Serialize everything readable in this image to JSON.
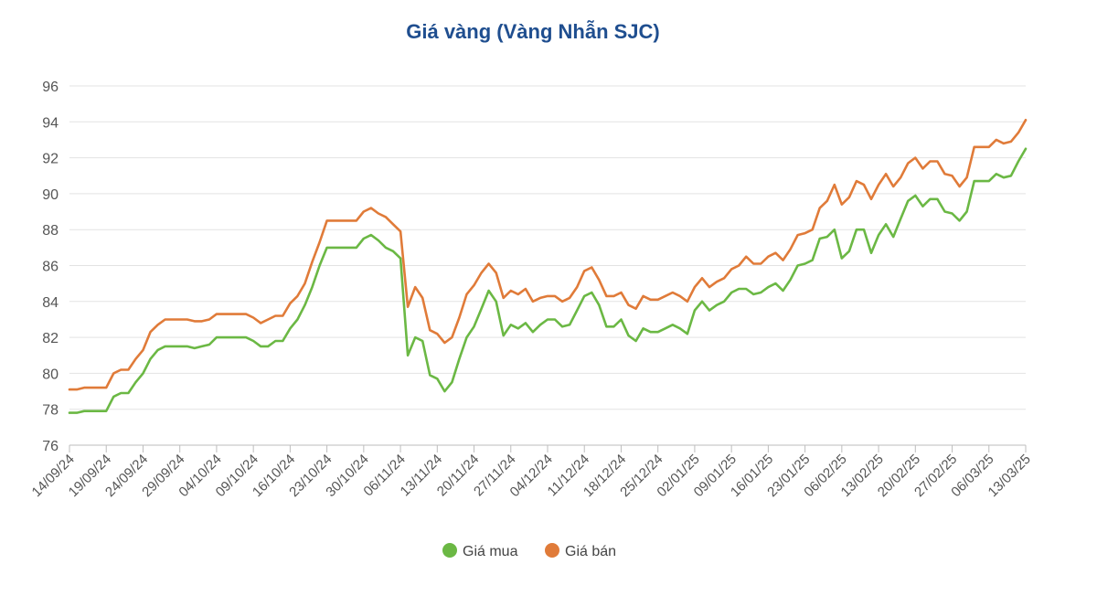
{
  "chart_data": {
    "type": "line",
    "title": "Giá vàng (Vàng Nhẫn SJC)",
    "xlabel": "",
    "ylabel": "",
    "ylim": [
      76,
      96
    ],
    "y_ticks": [
      76,
      78,
      80,
      82,
      84,
      86,
      88,
      90,
      92,
      94,
      96
    ],
    "x_tick_labels": [
      "14/09/24",
      "19/09/24",
      "24/09/24",
      "29/09/24",
      "04/10/24",
      "09/10/24",
      "16/10/24",
      "23/10/24",
      "30/10/24",
      "06/11/24",
      "13/11/24",
      "20/11/24",
      "27/11/24",
      "04/12/24",
      "11/12/24",
      "18/12/24",
      "25/12/24",
      "02/01/25",
      "09/01/25",
      "16/01/25",
      "23/01/25",
      "06/02/25",
      "13/02/25",
      "20/02/25",
      "27/02/25",
      "06/03/25",
      "13/03/25"
    ],
    "grid": "horizontal",
    "legend_position": "bottom-center",
    "colors": {
      "buy": "#6bb844",
      "sell": "#e07b39",
      "title": "#1f4e8f"
    },
    "series": [
      {
        "name": "Giá mua",
        "values": [
          77.8,
          77.8,
          77.9,
          77.9,
          77.9,
          77.9,
          78.7,
          78.9,
          78.9,
          79.5,
          80,
          80.8,
          81.3,
          81.5,
          81.5,
          81.5,
          81.5,
          81.4,
          81.5,
          81.6,
          82,
          82,
          82,
          82,
          82,
          81.8,
          81.5,
          81.5,
          81.8,
          81.8,
          82.5,
          83,
          83.8,
          84.8,
          86,
          87,
          87,
          87,
          87,
          87,
          87.5,
          87.7,
          87.4,
          87,
          86.8,
          86.4,
          81,
          82,
          81.8,
          79.9,
          79.7,
          79,
          79.5,
          80.8,
          82,
          82.6,
          83.6,
          84.6,
          84,
          82.1,
          82.7,
          82.5,
          82.8,
          82.3,
          82.7,
          83,
          83,
          82.6,
          82.7,
          83.5,
          84.3,
          84.5,
          83.8,
          82.6,
          82.6,
          83,
          82.1,
          81.8,
          82.5,
          82.3,
          82.3,
          82.5,
          82.7,
          82.5,
          82.2,
          83.5,
          84,
          83.5,
          83.8,
          84,
          84.5,
          84.7,
          84.7,
          84.4,
          84.5,
          84.8,
          85,
          84.6,
          85.2,
          86,
          86.1,
          86.3,
          87.5,
          87.6,
          88,
          86.4,
          86.8,
          88,
          88,
          86.7,
          87.7,
          88.3,
          87.6,
          88.6,
          89.6,
          89.9,
          89.3,
          89.7,
          89.7,
          89,
          88.9,
          88.5,
          89,
          90.7,
          90.7,
          90.7,
          91.1,
          90.9,
          91,
          91.8,
          92.5
        ]
      },
      {
        "name": "Giá bán",
        "values": [
          79.1,
          79.1,
          79.2,
          79.2,
          79.2,
          79.2,
          80,
          80.2,
          80.2,
          80.8,
          81.3,
          82.3,
          82.7,
          83,
          83,
          83,
          83,
          82.9,
          82.9,
          83,
          83.3,
          83.3,
          83.3,
          83.3,
          83.3,
          83.1,
          82.8,
          83,
          83.2,
          83.2,
          83.9,
          84.3,
          85,
          86.2,
          87.3,
          88.5,
          88.5,
          88.5,
          88.5,
          88.5,
          89,
          89.2,
          88.9,
          88.7,
          88.3,
          87.9,
          83.7,
          84.8,
          84.2,
          82.4,
          82.2,
          81.7,
          82,
          83.1,
          84.4,
          84.9,
          85.6,
          86.1,
          85.6,
          84.2,
          84.6,
          84.4,
          84.7,
          84,
          84.2,
          84.3,
          84.3,
          84,
          84.2,
          84.8,
          85.7,
          85.9,
          85.2,
          84.3,
          84.3,
          84.5,
          83.8,
          83.6,
          84.3,
          84.1,
          84.1,
          84.3,
          84.5,
          84.3,
          84,
          84.8,
          85.3,
          84.8,
          85.1,
          85.3,
          85.8,
          86,
          86.5,
          86.1,
          86.1,
          86.5,
          86.7,
          86.3,
          86.9,
          87.7,
          87.8,
          88,
          89.2,
          89.6,
          90.5,
          89.4,
          89.8,
          90.7,
          90.5,
          89.7,
          90.5,
          91.1,
          90.4,
          90.9,
          91.7,
          92,
          91.4,
          91.8,
          91.8,
          91.1,
          91,
          90.4,
          90.9,
          92.6,
          92.6,
          92.6,
          93,
          92.8,
          92.9,
          93.4,
          94.1
        ]
      }
    ]
  }
}
